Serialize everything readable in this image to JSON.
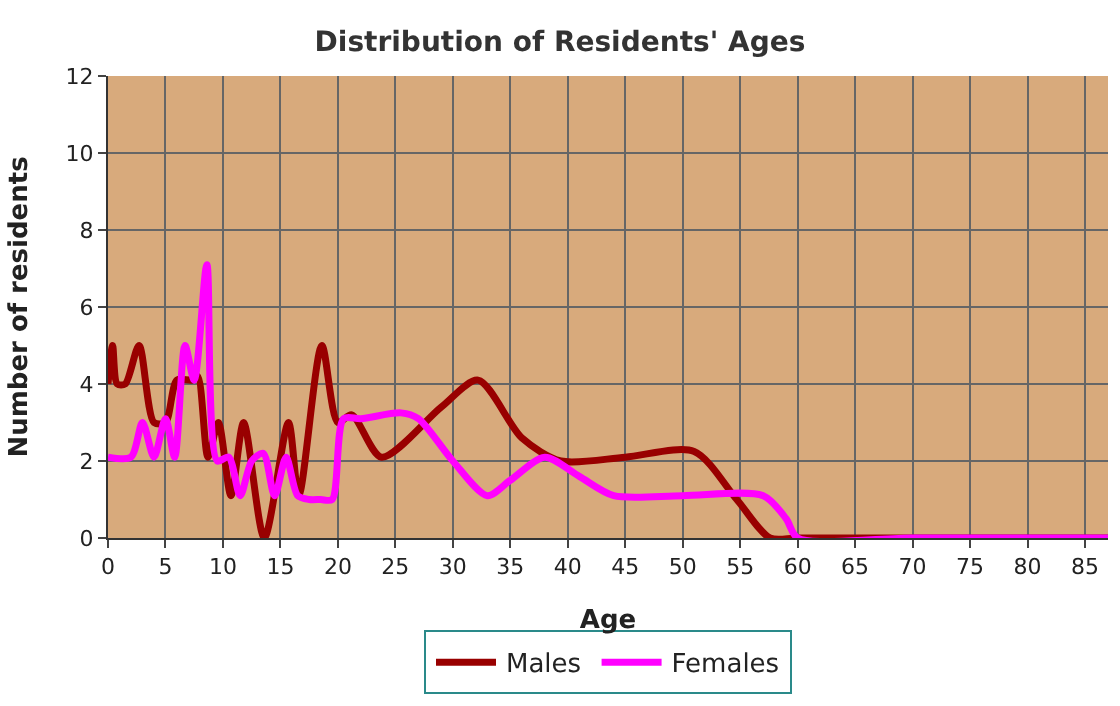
{
  "chart_data": {
    "type": "line",
    "title": "Distribution of Residents' Ages",
    "xlabel": "Age",
    "ylabel": "Number of residents",
    "xlim": [
      0,
      87
    ],
    "xticks": [
      0,
      5,
      10,
      15,
      20,
      25,
      30,
      35,
      40,
      45,
      50,
      55,
      60,
      65,
      70,
      75,
      80,
      85
    ],
    "ylim": [
      0,
      12
    ],
    "yticks": [
      0,
      2,
      4,
      6,
      8,
      10,
      12
    ],
    "grid": true,
    "legend": "bottom",
    "marker": "none",
    "line_style": "solid",
    "series": [
      {
        "name": "Males",
        "color": "#990000",
        "x": [
          0,
          0.4,
          0.8,
          1.5,
          2.7,
          4,
          5,
          6,
          7.3,
          7.8,
          8.7,
          9.6,
          10.7,
          11.8,
          13.6,
          15.7,
          16.6,
          18.6,
          20,
          21.2,
          23.8,
          29,
          32.2,
          36,
          39.4,
          45,
          51,
          54.7,
          57.6,
          60,
          70,
          80,
          87
        ],
        "values": [
          4,
          5,
          4,
          4,
          5,
          3,
          3,
          4.1,
          4.1,
          4.2,
          2.1,
          3,
          1.1,
          3,
          0,
          3,
          1.1,
          5,
          3,
          3.2,
          2.1,
          3.4,
          4.1,
          2.6,
          2,
          2.1,
          2.25,
          1,
          0,
          0,
          0,
          0,
          0
        ]
      },
      {
        "name": "Females",
        "color": "#ff00ff",
        "x": [
          0,
          2,
          3,
          4,
          5,
          5.8,
          6.7,
          7.5,
          8.6,
          9.5,
          10.5,
          11.5,
          12.5,
          13.5,
          14.5,
          15.5,
          16.5,
          17.5,
          18.5,
          19.5,
          20.5,
          22,
          25.5,
          27,
          30,
          33,
          35,
          38,
          41,
          44,
          50,
          57,
          59,
          60,
          70,
          80,
          87
        ],
        "values": [
          2.1,
          2.1,
          3,
          2.1,
          3.1,
          2.1,
          5,
          4.1,
          7.1,
          2,
          2.1,
          1.1,
          2,
          2.2,
          1.1,
          2.1,
          1.1,
          1,
          1,
          1,
          3.1,
          3.1,
          3.25,
          3.1,
          2,
          1.1,
          1.5,
          2.1,
          1.6,
          1.1,
          1.1,
          1.1,
          0.5,
          0,
          0,
          0,
          0
        ]
      }
    ]
  }
}
